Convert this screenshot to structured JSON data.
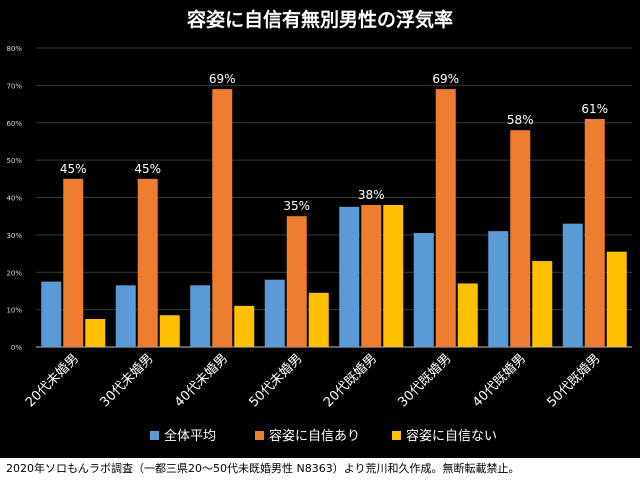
{
  "chart_data": {
    "type": "bar",
    "title": "容姿に自信有無別男性の浮気率",
    "categories": [
      "20代未婚男",
      "30代未婚男",
      "40代未婚男",
      "50代未婚男",
      "20代既婚男",
      "30代既婚男",
      "40代既婚男",
      "50代既婚男"
    ],
    "series": [
      {
        "name": "全体平均",
        "color": "#5B9BD5",
        "values": [
          17.5,
          16.5,
          16.5,
          18,
          37.5,
          30.5,
          31,
          33
        ]
      },
      {
        "name": "容姿に自信あり",
        "color": "#ED7D31",
        "values": [
          45,
          45,
          69,
          35,
          38,
          69,
          58,
          61
        ]
      },
      {
        "name": "容姿に自信ない",
        "color": "#FFC000",
        "values": [
          7.5,
          8.5,
          11,
          14.5,
          38,
          17,
          23,
          25.5
        ]
      }
    ],
    "data_labels": [
      "45%",
      "45%",
      "69%",
      "35%",
      "38%",
      "69%",
      "58%",
      "61%"
    ],
    "y_ticks": [
      "0%",
      "10%",
      "20%",
      "30%",
      "40%",
      "50%",
      "60%",
      "70%",
      "80%"
    ],
    "ylim": [
      0,
      80
    ],
    "legend_position": "bottom",
    "xlabel": "",
    "ylabel": ""
  },
  "caption": "2020年ソロもんラボ調査（一都三県20〜50代未既婚男性 N8363）より荒川和久作成。無断転載禁止。"
}
